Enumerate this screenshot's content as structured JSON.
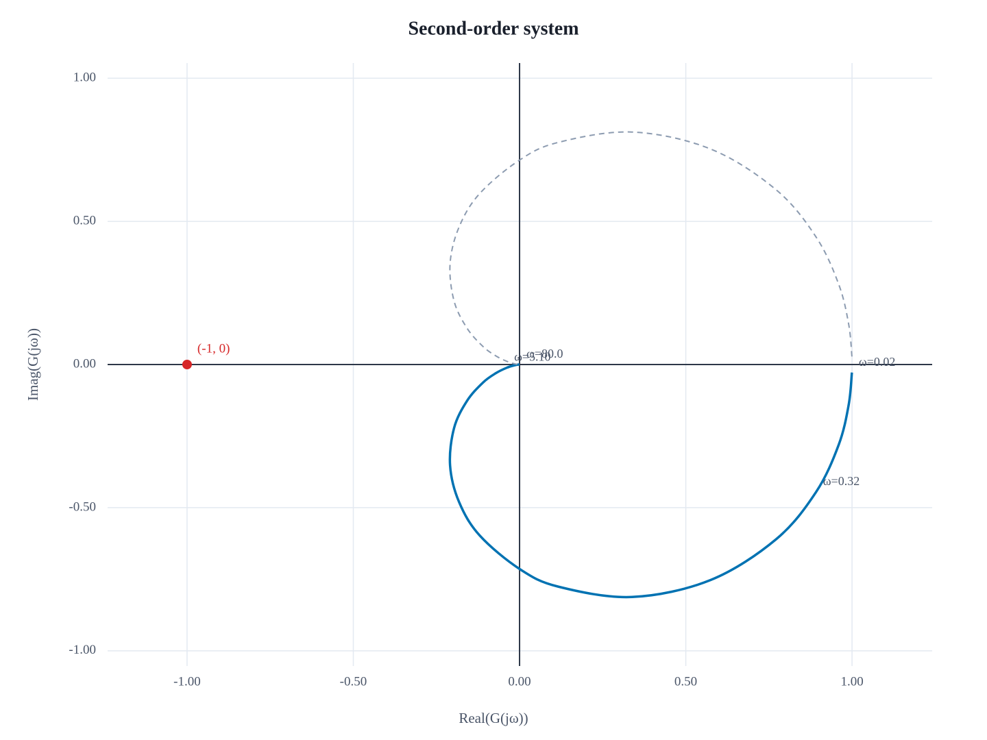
{
  "chart_data": {
    "type": "line",
    "title": "Second-order system",
    "x_label": "Real(G(jω))",
    "y_label": "Imag(G(jω))",
    "xlim": [
      -1.239,
      1.241
    ],
    "ylim": [
      -1.053,
      1.053
    ],
    "xticks": [
      {
        "value": -1,
        "label": "-1.00"
      },
      {
        "value": -0.5,
        "label": "-0.50"
      },
      {
        "value": 0,
        "label": "0.00"
      },
      {
        "value": 0.5,
        "label": "0.50"
      },
      {
        "value": 1,
        "label": "1.00"
      }
    ],
    "yticks": [
      {
        "value": -1,
        "label": "-1.00"
      },
      {
        "value": -0.5,
        "label": "-0.50"
      },
      {
        "value": 0,
        "label": "0.00"
      },
      {
        "value": 0.5,
        "label": "0.50"
      },
      {
        "value": 1,
        "label": "1.00"
      }
    ],
    "grid": true,
    "series": [
      {
        "color": "#0072b2",
        "dashed": false,
        "x": [
          0.9996,
          0.99,
          0.96,
          0.892,
          0.772,
          0.574,
          0.338,
          0.117,
          0,
          -0.12,
          -0.182,
          -0.209,
          -0.197,
          -0.158,
          -0.11,
          -0.071,
          -0.0384,
          -0.0154,
          -0.0044,
          -0.0002
        ],
        "values": [
          -0.028,
          -0.14,
          -0.28,
          -0.445,
          -0.61,
          -0.753,
          -0.812,
          -0.776,
          -0.714,
          -0.597,
          -0.48,
          -0.352,
          -0.222,
          -0.127,
          -0.063,
          -0.03,
          -0.0112,
          -0.0027,
          -0.0004,
          0
        ]
      },
      {
        "color": "#8c9bb0",
        "dashed": true,
        "x": [
          0.9996,
          0.99,
          0.96,
          0.892,
          0.772,
          0.574,
          0.338,
          0.117,
          0,
          -0.12,
          -0.182,
          -0.209,
          -0.197,
          -0.158,
          -0.11,
          -0.071,
          -0.0384,
          -0.0154,
          -0.0044,
          -0.0002
        ],
        "values": [
          0.028,
          0.14,
          0.28,
          0.445,
          0.61,
          0.753,
          0.812,
          0.776,
          0.714,
          0.597,
          0.48,
          0.352,
          0.222,
          0.127,
          0.063,
          0.03,
          0.0112,
          0.0027,
          0.0004,
          0
        ]
      }
    ],
    "annotations": [
      {
        "text": "ω=0.02",
        "x": 0.9996,
        "y": -0.028
      },
      {
        "text": "ω=0.32",
        "x": 0.892,
        "y": -0.445
      },
      {
        "text": "ω=5.10",
        "x": -0.037,
        "y": -0.011
      },
      {
        "text": "ω=80.0",
        "x": 0.0,
        "y": 0.0
      }
    ],
    "points": [
      {
        "x": -1,
        "y": 0,
        "label": "(-1, 0)",
        "color": "#d62728"
      }
    ]
  }
}
